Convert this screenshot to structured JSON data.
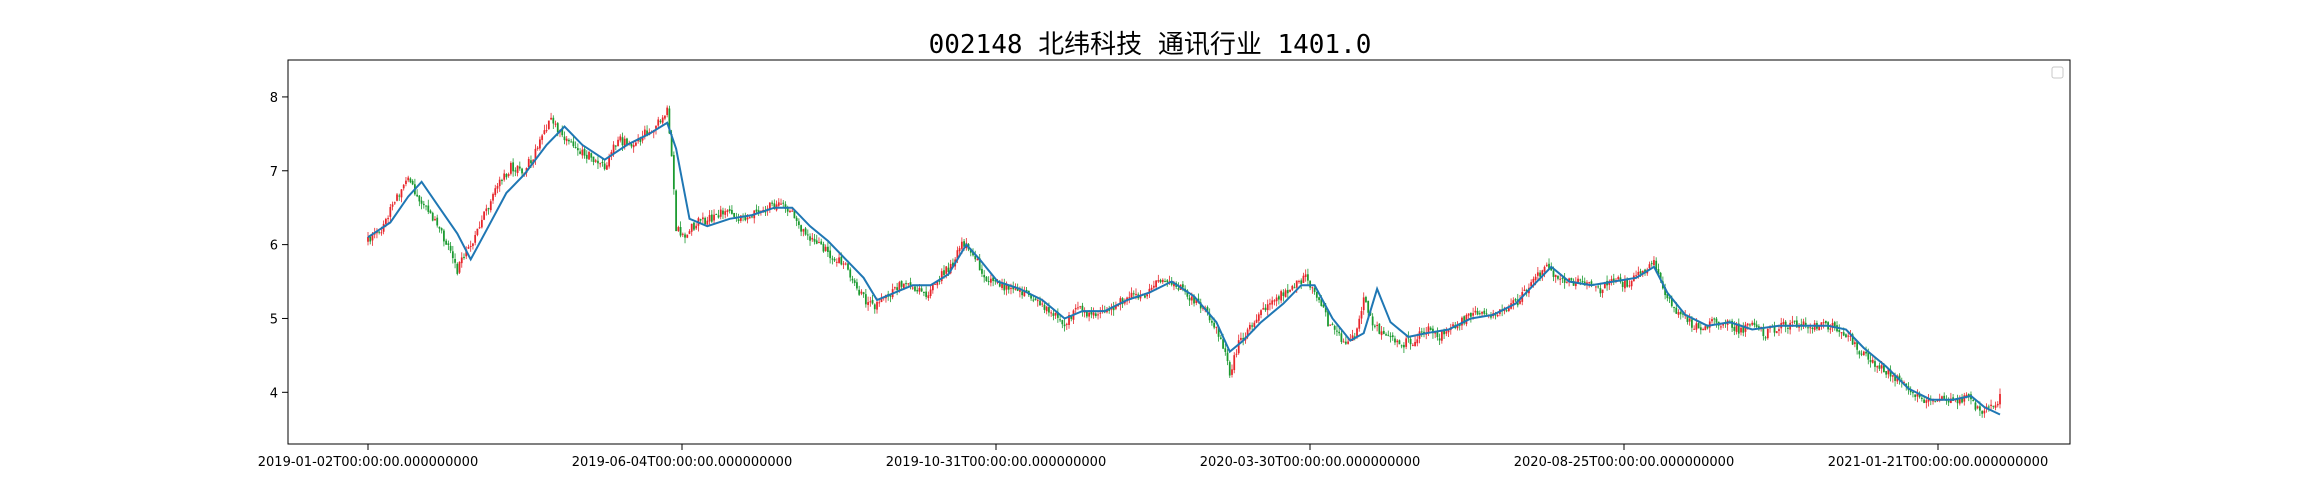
{
  "chart_data": {
    "type": "candlestick",
    "title": "002148 北纬科技 通讯行业 1401.0",
    "xlabel": "",
    "ylabel": "",
    "ylim": [
      3.3,
      8.5
    ],
    "grid": false,
    "legend": {
      "placement": "top-right",
      "entries": []
    },
    "colors": {
      "up": "#e8262b",
      "down": "#1b9a30",
      "ma_line": "#1f77b4"
    },
    "x_tick_labels": [
      "2019-01-02T00:00:00.000000000",
      "2019-06-04T00:00:00.000000000",
      "2019-10-31T00:00:00.000000000",
      "2020-03-30T00:00:00.000000000",
      "2020-08-25T00:00:00.000000000",
      "2021-01-21T00:00:00.000000000"
    ],
    "y_ticks": [
      4,
      5,
      6,
      7,
      8
    ],
    "price_path": [
      [
        0,
        6.05
      ],
      [
        6,
        6.2
      ],
      [
        12,
        6.6
      ],
      [
        18,
        6.9
      ],
      [
        24,
        6.55
      ],
      [
        30,
        6.3
      ],
      [
        36,
        6.0
      ],
      [
        40,
        5.65
      ],
      [
        46,
        6.0
      ],
      [
        52,
        6.4
      ],
      [
        58,
        6.8
      ],
      [
        64,
        7.05
      ],
      [
        70,
        7.0
      ],
      [
        76,
        7.3
      ],
      [
        82,
        7.7
      ],
      [
        88,
        7.45
      ],
      [
        94,
        7.25
      ],
      [
        100,
        7.2
      ],
      [
        106,
        7.05
      ],
      [
        112,
        7.45
      ],
      [
        118,
        7.3
      ],
      [
        124,
        7.5
      ],
      [
        130,
        7.65
      ],
      [
        134,
        7.8
      ],
      [
        136,
        7.2
      ],
      [
        138,
        6.2
      ],
      [
        142,
        6.15
      ],
      [
        148,
        6.3
      ],
      [
        154,
        6.35
      ],
      [
        160,
        6.45
      ],
      [
        166,
        6.35
      ],
      [
        172,
        6.4
      ],
      [
        178,
        6.5
      ],
      [
        184,
        6.55
      ],
      [
        190,
        6.4
      ],
      [
        196,
        6.15
      ],
      [
        202,
        6.0
      ],
      [
        208,
        5.85
      ],
      [
        214,
        5.7
      ],
      [
        220,
        5.35
      ],
      [
        226,
        5.15
      ],
      [
        232,
        5.3
      ],
      [
        238,
        5.45
      ],
      [
        244,
        5.45
      ],
      [
        250,
        5.3
      ],
      [
        256,
        5.55
      ],
      [
        262,
        5.75
      ],
      [
        266,
        6.05
      ],
      [
        270,
        5.95
      ],
      [
        276,
        5.55
      ],
      [
        282,
        5.45
      ],
      [
        288,
        5.4
      ],
      [
        294,
        5.35
      ],
      [
        300,
        5.2
      ],
      [
        306,
        5.1
      ],
      [
        312,
        4.95
      ],
      [
        318,
        5.15
      ],
      [
        324,
        5.05
      ],
      [
        330,
        5.1
      ],
      [
        336,
        5.2
      ],
      [
        342,
        5.3
      ],
      [
        348,
        5.3
      ],
      [
        354,
        5.5
      ],
      [
        360,
        5.5
      ],
      [
        366,
        5.35
      ],
      [
        372,
        5.2
      ],
      [
        378,
        5.0
      ],
      [
        384,
        4.5
      ],
      [
        386,
        4.25
      ],
      [
        390,
        4.65
      ],
      [
        396,
        4.9
      ],
      [
        402,
        5.15
      ],
      [
        408,
        5.3
      ],
      [
        414,
        5.45
      ],
      [
        420,
        5.55
      ],
      [
        424,
        5.4
      ],
      [
        430,
        4.95
      ],
      [
        436,
        4.7
      ],
      [
        442,
        4.75
      ],
      [
        446,
        5.25
      ],
      [
        450,
        4.9
      ],
      [
        456,
        4.8
      ],
      [
        462,
        4.65
      ],
      [
        468,
        4.7
      ],
      [
        474,
        4.85
      ],
      [
        480,
        4.75
      ],
      [
        486,
        4.9
      ],
      [
        492,
        5.0
      ],
      [
        498,
        5.1
      ],
      [
        504,
        5.05
      ],
      [
        510,
        5.15
      ],
      [
        516,
        5.25
      ],
      [
        522,
        5.55
      ],
      [
        528,
        5.7
      ],
      [
        534,
        5.5
      ],
      [
        540,
        5.5
      ],
      [
        546,
        5.45
      ],
      [
        552,
        5.4
      ],
      [
        558,
        5.55
      ],
      [
        564,
        5.45
      ],
      [
        570,
        5.6
      ],
      [
        576,
        5.75
      ],
      [
        580,
        5.4
      ],
      [
        584,
        5.15
      ],
      [
        590,
        5.0
      ],
      [
        596,
        4.85
      ],
      [
        602,
        4.95
      ],
      [
        608,
        4.95
      ],
      [
        614,
        4.85
      ],
      [
        620,
        4.9
      ],
      [
        626,
        4.8
      ],
      [
        632,
        4.9
      ],
      [
        638,
        4.9
      ],
      [
        644,
        4.9
      ],
      [
        650,
        4.9
      ],
      [
        656,
        4.9
      ],
      [
        662,
        4.8
      ],
      [
        668,
        4.55
      ],
      [
        674,
        4.4
      ],
      [
        680,
        4.3
      ],
      [
        686,
        4.15
      ],
      [
        692,
        3.95
      ],
      [
        698,
        3.9
      ],
      [
        704,
        3.95
      ],
      [
        710,
        3.85
      ],
      [
        716,
        3.95
      ],
      [
        722,
        3.75
      ],
      [
        728,
        3.8
      ],
      [
        731,
        3.95
      ]
    ],
    "ma_line": [
      [
        0,
        6.1
      ],
      [
        10,
        6.3
      ],
      [
        18,
        6.65
      ],
      [
        24,
        6.85
      ],
      [
        32,
        6.5
      ],
      [
        40,
        6.15
      ],
      [
        46,
        5.8
      ],
      [
        54,
        6.25
      ],
      [
        62,
        6.7
      ],
      [
        70,
        6.95
      ],
      [
        80,
        7.35
      ],
      [
        88,
        7.6
      ],
      [
        96,
        7.35
      ],
      [
        106,
        7.15
      ],
      [
        116,
        7.35
      ],
      [
        126,
        7.5
      ],
      [
        134,
        7.65
      ],
      [
        138,
        7.3
      ],
      [
        144,
        6.35
      ],
      [
        152,
        6.25
      ],
      [
        162,
        6.35
      ],
      [
        172,
        6.4
      ],
      [
        182,
        6.5
      ],
      [
        190,
        6.5
      ],
      [
        198,
        6.25
      ],
      [
        206,
        6.05
      ],
      [
        214,
        5.8
      ],
      [
        222,
        5.55
      ],
      [
        228,
        5.25
      ],
      [
        236,
        5.35
      ],
      [
        244,
        5.45
      ],
      [
        252,
        5.45
      ],
      [
        260,
        5.6
      ],
      [
        268,
        6.0
      ],
      [
        274,
        5.8
      ],
      [
        282,
        5.5
      ],
      [
        292,
        5.4
      ],
      [
        302,
        5.25
      ],
      [
        312,
        5.0
      ],
      [
        320,
        5.1
      ],
      [
        330,
        5.1
      ],
      [
        340,
        5.25
      ],
      [
        350,
        5.35
      ],
      [
        360,
        5.5
      ],
      [
        370,
        5.3
      ],
      [
        380,
        4.95
      ],
      [
        386,
        4.55
      ],
      [
        392,
        4.7
      ],
      [
        400,
        4.95
      ],
      [
        410,
        5.2
      ],
      [
        418,
        5.45
      ],
      [
        424,
        5.45
      ],
      [
        432,
        5.0
      ],
      [
        440,
        4.7
      ],
      [
        446,
        4.8
      ],
      [
        452,
        5.4
      ],
      [
        458,
        4.95
      ],
      [
        466,
        4.75
      ],
      [
        474,
        4.8
      ],
      [
        484,
        4.85
      ],
      [
        494,
        5.0
      ],
      [
        504,
        5.05
      ],
      [
        514,
        5.2
      ],
      [
        522,
        5.45
      ],
      [
        530,
        5.7
      ],
      [
        538,
        5.5
      ],
      [
        548,
        5.45
      ],
      [
        558,
        5.5
      ],
      [
        568,
        5.55
      ],
      [
        576,
        5.7
      ],
      [
        582,
        5.35
      ],
      [
        590,
        5.05
      ],
      [
        600,
        4.9
      ],
      [
        610,
        4.95
      ],
      [
        620,
        4.85
      ],
      [
        632,
        4.9
      ],
      [
        644,
        4.9
      ],
      [
        654,
        4.9
      ],
      [
        662,
        4.85
      ],
      [
        670,
        4.6
      ],
      [
        680,
        4.35
      ],
      [
        690,
        4.05
      ],
      [
        700,
        3.9
      ],
      [
        710,
        3.9
      ],
      [
        718,
        3.95
      ],
      [
        724,
        3.8
      ],
      [
        731,
        3.7
      ]
    ]
  }
}
